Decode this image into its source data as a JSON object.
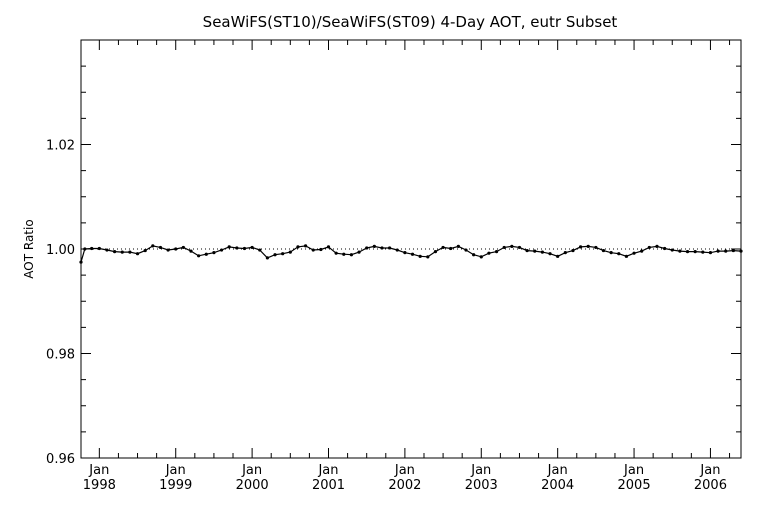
{
  "chart_data": {
    "type": "line",
    "title": "SeaWiFS(ST10)/SeaWiFS(ST09) 4-Day AOT, eutr Subset",
    "ylabel": "AOT Ratio",
    "xlabel": "",
    "ylim": [
      0.96,
      1.04
    ],
    "xlim": [
      1997.76,
      2006.4
    ],
    "y_ticks": [
      {
        "value": 0.96,
        "label": "0.96"
      },
      {
        "value": 0.98,
        "label": "0.98"
      },
      {
        "value": 1.0,
        "label": "1.00"
      },
      {
        "value": 1.02,
        "label": "1.02"
      }
    ],
    "x_ticks": [
      {
        "value": 1998,
        "month": "Jan",
        "year": "1998"
      },
      {
        "value": 1999,
        "month": "Jan",
        "year": "1999"
      },
      {
        "value": 2000,
        "month": "Jan",
        "year": "2000"
      },
      {
        "value": 2001,
        "month": "Jan",
        "year": "2001"
      },
      {
        "value": 2002,
        "month": "Jan",
        "year": "2002"
      },
      {
        "value": 2003,
        "month": "Jan",
        "year": "2003"
      },
      {
        "value": 2004,
        "month": "Jan",
        "year": "2004"
      },
      {
        "value": 2005,
        "month": "Jan",
        "year": "2005"
      },
      {
        "value": 2006,
        "month": "Jan",
        "year": "2006"
      }
    ],
    "reference_line": {
      "y": 1.0,
      "style": "dotted"
    },
    "grid": false,
    "series": [
      {
        "x": [
          1997.76,
          1997.81,
          1997.9,
          1998.0,
          1998.1,
          1998.2,
          1998.3,
          1998.4,
          1998.5,
          1998.6,
          1998.7,
          1998.8,
          1998.9,
          1999.0,
          1999.1,
          1999.2,
          1999.3,
          1999.4,
          1999.5,
          1999.6,
          1999.7,
          1999.8,
          1999.9,
          2000.0,
          2000.1,
          2000.2,
          2000.3,
          2000.4,
          2000.5,
          2000.6,
          2000.7,
          2000.8,
          2000.9,
          2001.0,
          2001.1,
          2001.2,
          2001.3,
          2001.4,
          2001.5,
          2001.6,
          2001.7,
          2001.8,
          2001.9,
          2002.0,
          2002.1,
          2002.2,
          2002.3,
          2002.4,
          2002.5,
          2002.6,
          2002.7,
          2002.8,
          2002.9,
          2003.0,
          2003.1,
          2003.2,
          2003.3,
          2003.4,
          2003.5,
          2003.6,
          2003.7,
          2003.8,
          2003.9,
          2004.0,
          2004.1,
          2004.2,
          2004.3,
          2004.4,
          2004.5,
          2004.6,
          2004.7,
          2004.8,
          2004.9,
          2005.0,
          2005.1,
          2005.2,
          2005.3,
          2005.4,
          2005.5,
          2005.6,
          2005.7,
          2005.8,
          2005.9,
          2006.0,
          2006.1,
          2006.2,
          2006.3,
          2006.4
        ],
        "y": [
          0.9975,
          1.0,
          1.0001,
          1.0001,
          0.9998,
          0.9995,
          0.9994,
          0.9994,
          0.9991,
          0.9997,
          1.0006,
          1.0003,
          0.9998,
          1.0,
          1.0003,
          0.9996,
          0.9987,
          0.999,
          0.9993,
          0.9998,
          1.0004,
          1.0002,
          1.0001,
          1.0003,
          0.9998,
          0.9983,
          0.9989,
          0.9991,
          0.9994,
          1.0004,
          1.0006,
          0.9998,
          0.9999,
          1.0004,
          0.9992,
          0.999,
          0.9989,
          0.9994,
          1.0002,
          1.0005,
          1.0002,
          1.0002,
          0.9998,
          0.9993,
          0.999,
          0.9986,
          0.9985,
          0.9995,
          1.0003,
          1.0001,
          1.0005,
          0.9998,
          0.9989,
          0.9985,
          0.9992,
          0.9995,
          1.0003,
          1.0005,
          1.0003,
          0.9997,
          0.9996,
          0.9994,
          0.9991,
          0.9986,
          0.9993,
          0.9997,
          1.0004,
          1.0005,
          1.0003,
          0.9997,
          0.9993,
          0.9991,
          0.9986,
          0.9992,
          0.9996,
          1.0003,
          1.0005,
          1.0001,
          0.9998,
          0.9996,
          0.9995,
          0.9995,
          0.9994,
          0.9993,
          0.9996,
          0.9996,
          0.9997,
          0.9996
        ]
      }
    ]
  }
}
